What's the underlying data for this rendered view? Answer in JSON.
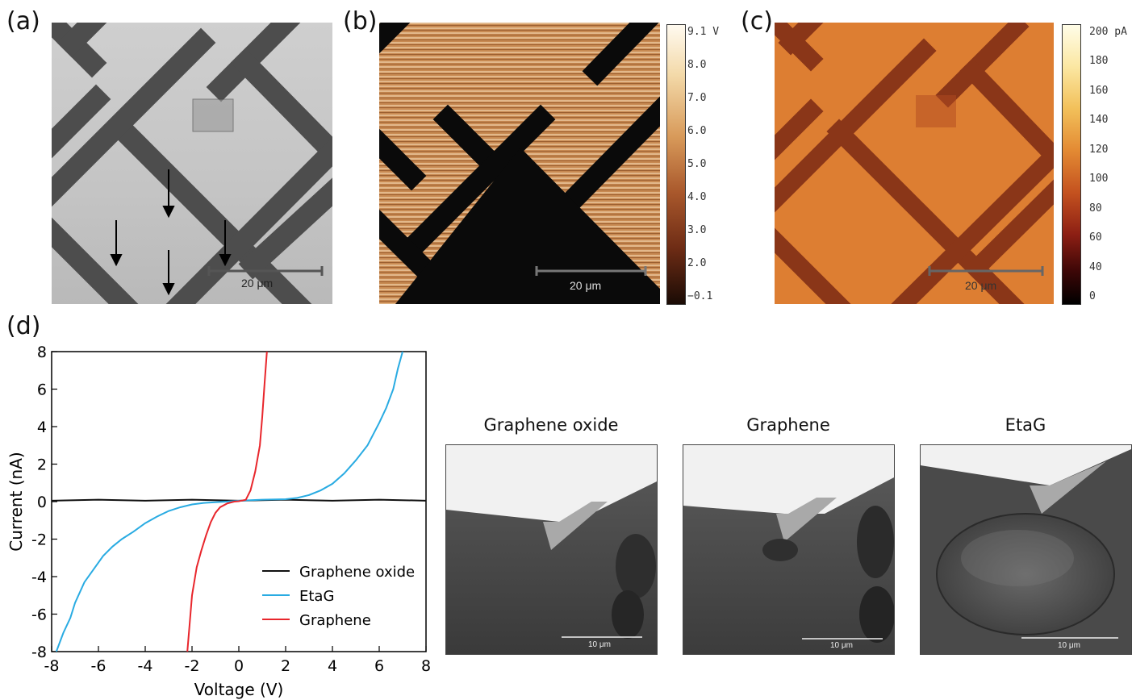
{
  "panels": {
    "a": {
      "label": "(a)",
      "scalebar": "20 μm"
    },
    "b": {
      "label": "(b)",
      "scalebar": "20 μm",
      "colorbar_ticks": [
        "9.1 V",
        "8.0",
        "7.0",
        "6.0",
        "5.0",
        "4.0",
        "3.0",
        "2.0",
        "−0.1"
      ]
    },
    "c": {
      "label": "(c)",
      "scalebar": "20 μm",
      "colorbar_ticks": [
        "200 pA",
        "180",
        "160",
        "140",
        "120",
        "100",
        "80",
        "60",
        "40",
        "0"
      ]
    },
    "d": {
      "label": "(d)"
    }
  },
  "sem_images": [
    {
      "title": "Graphene oxide",
      "scalebar": "10 μm"
    },
    {
      "title": "Graphene",
      "scalebar": "10 μm"
    },
    {
      "title": "EtaG",
      "scalebar": "10 μm"
    }
  ],
  "colors": {
    "graphene_oxide": "#111111",
    "etag": "#29abe2",
    "graphene": "#e8262c"
  },
  "chart_data": {
    "type": "line",
    "xlabel": "Voltage (V)",
    "ylabel": "Current (nA)",
    "xlim": [
      -8,
      8
    ],
    "ylim": [
      -8,
      8
    ],
    "xticks": [
      -8,
      -6,
      -4,
      -2,
      0,
      2,
      4,
      6,
      8
    ],
    "yticks": [
      -8,
      -6,
      -4,
      -2,
      0,
      2,
      4,
      6,
      8
    ],
    "legend": "bottom-right",
    "series": [
      {
        "name": "Graphene oxide",
        "color": "#111111",
        "x": [
          -8,
          -6,
          -4,
          -2,
          0,
          2,
          4,
          6,
          8
        ],
        "y": [
          0.05,
          0.1,
          0.05,
          0.1,
          0.05,
          0.1,
          0.05,
          0.1,
          0.05
        ]
      },
      {
        "name": "EtaG",
        "color": "#29abe2",
        "x": [
          -7.8,
          -7.5,
          -7.2,
          -7.0,
          -6.6,
          -6.2,
          -5.8,
          -5.4,
          -5.0,
          -4.5,
          -4.0,
          -3.5,
          -3.0,
          -2.5,
          -2.0,
          -1.5,
          -1.0,
          -0.5,
          0,
          1.0,
          2.0,
          2.5,
          3.0,
          3.5,
          4.0,
          4.5,
          5.0,
          5.5,
          6.0,
          6.3,
          6.6,
          6.8,
          7.0
        ],
        "y": [
          -8,
          -7.0,
          -6.2,
          -5.4,
          -4.3,
          -3.6,
          -2.9,
          -2.4,
          -2.0,
          -1.6,
          -1.15,
          -0.8,
          -0.5,
          -0.3,
          -0.15,
          -0.07,
          -0.03,
          0.0,
          0.05,
          0.1,
          0.13,
          0.2,
          0.35,
          0.6,
          0.95,
          1.5,
          2.2,
          3.0,
          4.2,
          5.0,
          6.0,
          7.1,
          8.0
        ]
      },
      {
        "name": "Graphene",
        "color": "#e8262c",
        "x": [
          -2.2,
          -2.0,
          -1.8,
          -1.6,
          -1.4,
          -1.2,
          -1.0,
          -0.8,
          -0.5,
          -0.2,
          0,
          0.3,
          0.5,
          0.7,
          0.9,
          1.0,
          1.1,
          1.2
        ],
        "y": [
          -8,
          -5.0,
          -3.5,
          -2.6,
          -1.8,
          -1.1,
          -0.6,
          -0.3,
          -0.1,
          0.0,
          0.02,
          0.1,
          0.6,
          1.6,
          3.0,
          4.5,
          6.3,
          8.0
        ]
      }
    ]
  }
}
